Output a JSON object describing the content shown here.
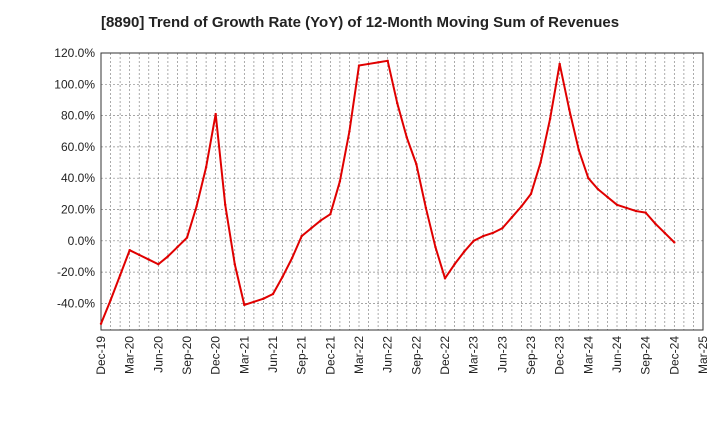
{
  "chart_data": {
    "type": "line",
    "title": "[8890]  Trend of Growth Rate (YoY) of 12-Month Moving Sum of Revenues",
    "xlabel": "",
    "ylabel": "",
    "ylim": [
      -57,
      120
    ],
    "y_ticks": [
      -40,
      -20,
      0,
      20,
      40,
      60,
      80,
      100,
      120
    ],
    "y_tick_labels": [
      "-40.0%",
      "-20.0%",
      "0.0%",
      "20.0%",
      "40.0%",
      "60.0%",
      "80.0%",
      "100.0%",
      "120.0%"
    ],
    "x_tick_labels": [
      "Dec-19",
      "Mar-20",
      "Jun-20",
      "Sep-20",
      "Dec-20",
      "Mar-21",
      "Jun-21",
      "Sep-21",
      "Dec-21",
      "Mar-22",
      "Jun-22",
      "Sep-22",
      "Dec-22",
      "Mar-23",
      "Jun-23",
      "Sep-23",
      "Dec-23",
      "Mar-24",
      "Jun-24",
      "Sep-24",
      "Dec-24",
      "Mar-25"
    ],
    "grid": true,
    "line_color": "#e00000",
    "series": [
      {
        "x": [
          "Dec-19",
          "Jan-20",
          "Feb-20",
          "Mar-20",
          "Apr-20",
          "May-20",
          "Jun-20",
          "Jul-20",
          "Aug-20",
          "Sep-20",
          "Oct-20",
          "Nov-20",
          "Dec-20",
          "Jan-21",
          "Feb-21",
          "Mar-21",
          "Apr-21",
          "May-21",
          "Jun-21",
          "Jul-21",
          "Aug-21",
          "Sep-21",
          "Oct-21",
          "Nov-21",
          "Dec-21",
          "Jan-22",
          "Feb-22",
          "Mar-22",
          "Apr-22",
          "May-22",
          "Jun-22",
          "Jul-22",
          "Aug-22",
          "Sep-22",
          "Oct-22",
          "Nov-22",
          "Dec-22",
          "Jan-23",
          "Feb-23",
          "Mar-23",
          "Apr-23",
          "May-23",
          "Jun-23",
          "Jul-23",
          "Aug-23",
          "Sep-23",
          "Oct-23",
          "Nov-23",
          "Dec-23",
          "Jan-24",
          "Feb-24",
          "Mar-24",
          "Apr-24",
          "May-24",
          "Jun-24",
          "Jul-24",
          "Aug-24",
          "Sep-24",
          "Oct-24",
          "Nov-24",
          "Dec-24"
        ],
        "values": [
          -53,
          -38,
          -22,
          -6,
          -9,
          -12,
          -15,
          -10,
          -4,
          2,
          22,
          47,
          81,
          23,
          -15,
          -41,
          -39,
          -37,
          -34,
          -23,
          -11,
          3,
          8,
          13,
          17,
          38,
          70,
          112,
          113,
          114,
          115,
          88,
          66,
          49,
          21,
          -4,
          -24,
          -15,
          -7,
          0,
          3,
          5,
          8,
          15,
          22,
          30,
          50,
          78,
          113,
          84,
          58,
          40,
          33,
          28,
          23,
          21,
          19,
          18,
          11,
          5,
          -1
        ]
      }
    ]
  }
}
